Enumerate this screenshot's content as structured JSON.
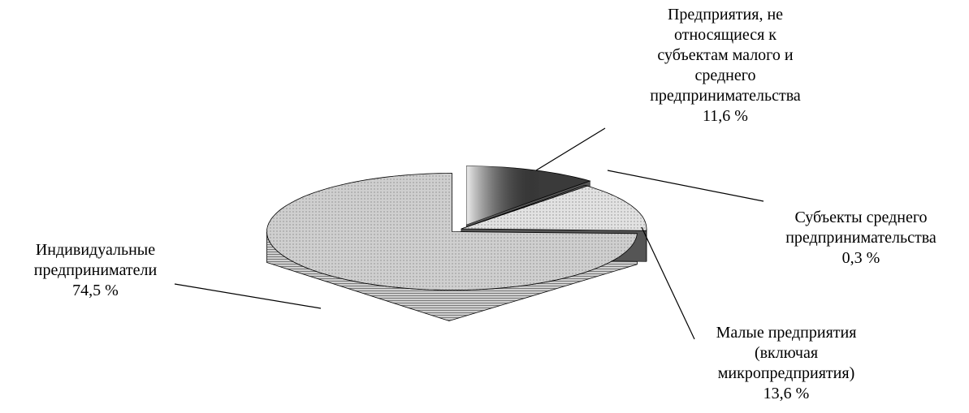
{
  "chart_data": {
    "type": "pie3d",
    "categories": [
      "Предприятия, не относящиеся к субъектам малого и среднего предпринимательства",
      "Субъекты среднего предпринимательства",
      "Малые предприятия (включая микропредприятия)",
      "Индивидуальные предприниматели"
    ],
    "values": [
      11.6,
      0.3,
      13.6,
      74.5
    ],
    "value_labels": [
      "11,6 %",
      "0,3 %",
      "13,6 %",
      "74,5 %"
    ],
    "colors": [
      "#3a3a3a",
      "#6a6a6a",
      "#e2e2e2",
      "#cfcfcf"
    ]
  }
}
